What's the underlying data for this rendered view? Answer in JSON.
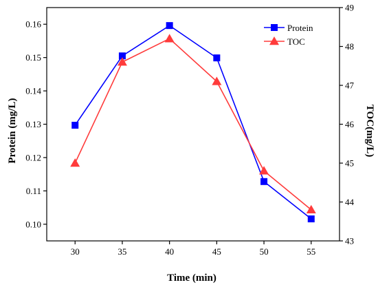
{
  "chart_data": {
    "type": "line",
    "xlabel": "Time (min)",
    "ylabel_left": "Protein (mg/L)",
    "ylabel_right": "TOC(mg/L)",
    "x": [
      30,
      35,
      40,
      45,
      50,
      55
    ],
    "xlim": [
      27,
      58
    ],
    "x_ticks": [
      "30",
      "35",
      "40",
      "45",
      "50",
      "55"
    ],
    "ylim_left": [
      0.095,
      0.165
    ],
    "y_left_ticks": [
      "0.10",
      "0.11",
      "0.12",
      "0.13",
      "0.14",
      "0.15",
      "0.16"
    ],
    "ylim_right": [
      43,
      49
    ],
    "y_right_ticks": [
      "43",
      "44",
      "45",
      "46",
      "47",
      "48",
      "49"
    ],
    "legend_position": "top-right",
    "grid": false,
    "series": [
      {
        "name": "Protein",
        "axis": "left",
        "marker": "square",
        "color": "#0000ff",
        "values": [
          0.1297,
          0.1505,
          0.1596,
          0.1499,
          0.1128,
          0.1016
        ]
      },
      {
        "name": "TOC",
        "axis": "right",
        "marker": "triangle",
        "color": "#ff3b3b",
        "values": [
          45.0,
          47.6,
          48.2,
          47.1,
          44.8,
          43.8
        ]
      }
    ]
  }
}
